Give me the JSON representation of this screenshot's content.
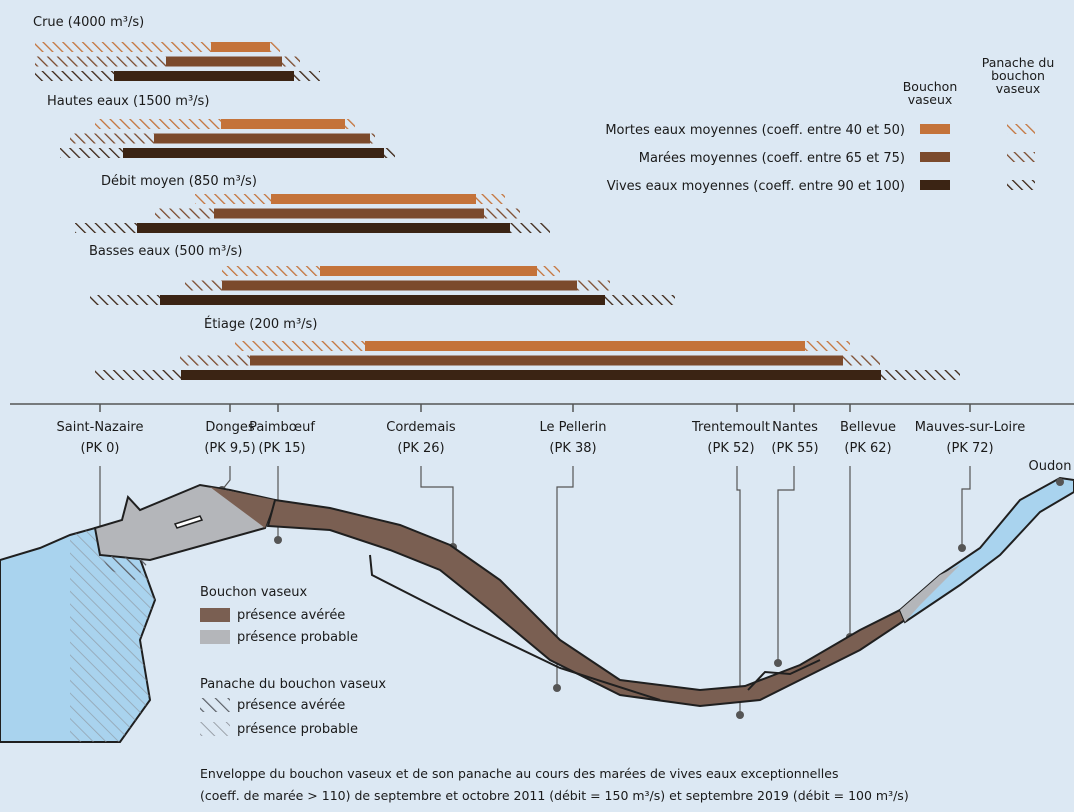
{
  "groups": [
    "Crue (4000 m³/s)",
    "Hautes eaux (1500 m³/s)",
    "Débit moyen (850 m³/s)",
    "Basses eaux (500 m³/s)",
    "Étiage (200 m³/s)"
  ],
  "legend": {
    "col_bouchon": [
      "Bouchon",
      "vaseux"
    ],
    "col_panache": [
      "Panache du",
      "bouchon",
      "vaseux"
    ],
    "rows": [
      "Mortes eaux moyennes (coeff. entre 40 et 50)",
      "Marées moyennes (coeff. entre 65 et 75)",
      "Vives eaux moyennes (coeff. entre 90 et 100)"
    ]
  },
  "places": [
    {
      "name": "Saint-Nazaire",
      "pk": "(PK 0)"
    },
    {
      "name": "Donges",
      "pk": "(PK 9,5)"
    },
    {
      "name": "Paimbœuf",
      "pk": "(PK 15)"
    },
    {
      "name": "Cordemais",
      "pk": "(PK 26)"
    },
    {
      "name": "Le Pellerin",
      "pk": "(PK 38)"
    },
    {
      "name": "Trentemoult",
      "pk": "(PK 52)"
    },
    {
      "name": "Nantes",
      "pk": "(PK 55)"
    },
    {
      "name": "Bellevue",
      "pk": "(PK 62)"
    },
    {
      "name": "Mauves-sur-Loire",
      "pk": "(PK 72)"
    }
  ],
  "oudon": "Oudon",
  "map_legend": {
    "bouchon_title": "Bouchon vaseux",
    "bouchon_avere": "présence avérée",
    "bouchon_probable": "présence probable",
    "panache_title": "Panache du bouchon vaseux",
    "panache_avere": "présence avérée",
    "panache_probable": "présence probable"
  },
  "caption": [
    "Enveloppe du bouchon vaseux et de son panache au cours des marées de vives eaux exceptionnelles",
    "(coeff. de marée > 110) de septembre et octobre 2011 (débit = 150 m³/s) et septembre 2019 (débit = 100 m³/s)"
  ]
}
